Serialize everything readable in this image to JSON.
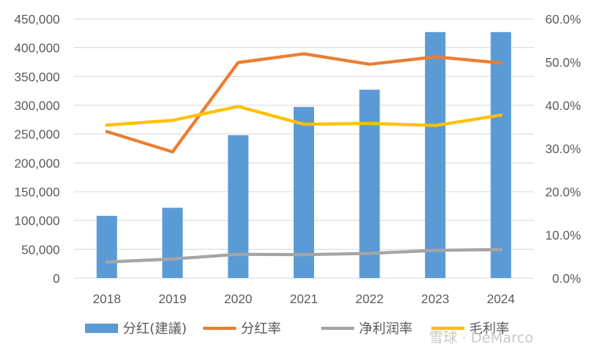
{
  "chart_data": {
    "type": "bar",
    "categories": [
      "2018",
      "2019",
      "2020",
      "2021",
      "2022",
      "2023",
      "2024"
    ],
    "series": [
      {
        "name": "分红(建議)",
        "type": "bar",
        "axis": "left",
        "color": "#5b9bd5",
        "values": [
          108000,
          122000,
          248000,
          297000,
          327000,
          427000,
          427000
        ]
      },
      {
        "name": "分红率",
        "type": "line",
        "axis": "right",
        "color": "#ed7d31",
        "values": [
          0.339,
          0.292,
          0.499,
          0.519,
          0.495,
          0.512,
          0.498
        ]
      },
      {
        "name": "净利润率",
        "type": "line",
        "axis": "right",
        "color": "#a5a5a5",
        "values": [
          0.037,
          0.044,
          0.055,
          0.054,
          0.057,
          0.064,
          0.066
        ]
      },
      {
        "name": "毛利率",
        "type": "line",
        "axis": "right",
        "color": "#ffc000",
        "values": [
          0.354,
          0.365,
          0.397,
          0.356,
          0.358,
          0.353,
          0.377
        ]
      }
    ],
    "y_left": {
      "min": 0,
      "max": 450000,
      "step": 50000,
      "tick_labels": [
        "0",
        "50,000",
        "100,000",
        "150,000",
        "200,000",
        "250,000",
        "300,000",
        "350,000",
        "400,000",
        "450,000"
      ]
    },
    "y_right": {
      "min": 0,
      "max": 0.6,
      "step": 0.1,
      "tick_labels": [
        "0.0%",
        "10.0%",
        "20.0%",
        "30.0%",
        "40.0%",
        "50.0%",
        "60.0%"
      ]
    },
    "grid": true,
    "legend_position": "bottom"
  },
  "watermark": "雪球 · DeMarco"
}
